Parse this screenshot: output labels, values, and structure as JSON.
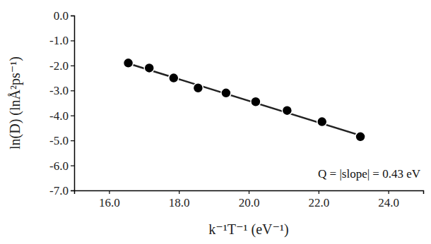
{
  "chart_data": {
    "type": "scatter",
    "x_label": "k⁻¹T⁻¹ (eV⁻¹)",
    "y_label": "ln(D) (lnÅ²ps⁻¹)",
    "annotation": "Q = |slope| = 0.43 eV",
    "xlim": [
      15,
      25
    ],
    "ylim": [
      -7,
      0
    ],
    "xticks": [
      {
        "value": 16,
        "label": "16.0"
      },
      {
        "value": 18,
        "label": "18.0"
      },
      {
        "value": 20,
        "label": "20.0"
      },
      {
        "value": 22,
        "label": "22.0"
      },
      {
        "value": 24,
        "label": "24.0"
      }
    ],
    "yticks": [
      {
        "value": 0,
        "label": "0.0"
      },
      {
        "value": -1,
        "label": "-1.0"
      },
      {
        "value": -2,
        "label": "-2.0"
      },
      {
        "value": -3,
        "label": "-3.0"
      },
      {
        "value": -4,
        "label": "-4.0"
      },
      {
        "value": -5,
        "label": "-5.0"
      },
      {
        "value": -6,
        "label": "-6.0"
      },
      {
        "value": -7,
        "label": "-7.0"
      }
    ],
    "grid": false,
    "series": [
      {
        "type": "scatter",
        "color": "#000000",
        "marker": "circle",
        "x": [
          16.55,
          17.15,
          17.85,
          18.55,
          19.35,
          20.2,
          21.1,
          22.1,
          23.2
        ],
        "values": [
          -1.9,
          -2.1,
          -2.5,
          -2.9,
          -3.1,
          -3.45,
          -3.8,
          -4.25,
          -4.85
        ]
      },
      {
        "type": "line",
        "color": "#222222",
        "line_style": "solid",
        "x": [
          16.55,
          23.2
        ],
        "values": [
          -1.92,
          -4.8
        ]
      }
    ]
  }
}
